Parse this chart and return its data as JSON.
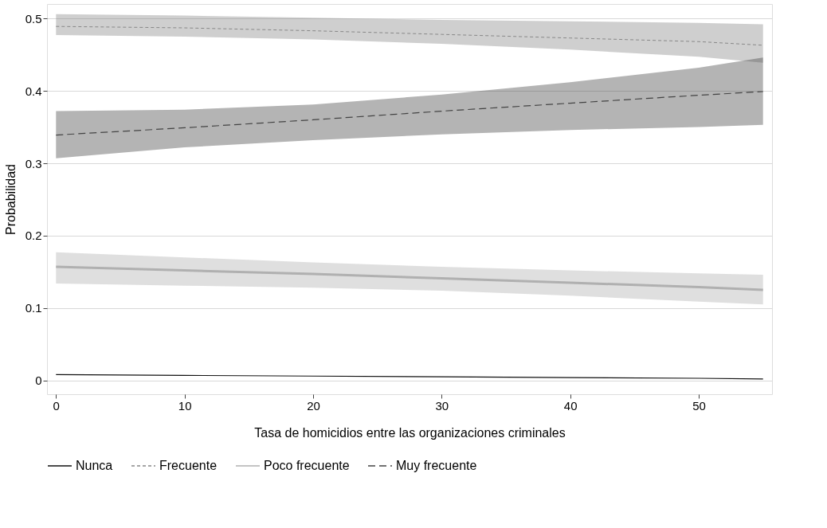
{
  "chart_data": {
    "type": "line",
    "xlabel": "Tasa de homicidios entre las organizaciones criminales",
    "ylabel": "Probabilidad",
    "x": [
      0,
      10,
      20,
      30,
      40,
      50,
      55
    ],
    "xlim": [
      -0.7,
      55.7
    ],
    "ylim": [
      -0.019,
      0.52
    ],
    "xticks": [
      0,
      10,
      20,
      30,
      40,
      50
    ],
    "yticks": [
      0,
      0.1,
      0.2,
      0.3,
      0.4,
      0.5
    ],
    "grid": "y",
    "legend": "bottom",
    "series": [
      {
        "name": "Nunca",
        "color": "#111111",
        "line_style": "solid",
        "values": [
          0.008,
          0.007,
          0.006,
          0.005,
          0.004,
          0.003,
          0.002
        ]
      },
      {
        "name": "Frecuente",
        "color": "#888888",
        "line_style": "dotted",
        "values": [
          0.489,
          0.487,
          0.483,
          0.478,
          0.473,
          0.468,
          0.463
        ],
        "lower": [
          0.477,
          0.475,
          0.471,
          0.465,
          0.457,
          0.447,
          0.439
        ],
        "upper": [
          0.506,
          0.504,
          0.501,
          0.498,
          0.496,
          0.494,
          0.492
        ]
      },
      {
        "name": "Poco frecuente",
        "color": "#b0b0b0",
        "line_style": "solid",
        "values": [
          0.157,
          0.152,
          0.147,
          0.141,
          0.135,
          0.129,
          0.125
        ],
        "lower": [
          0.134,
          0.131,
          0.128,
          0.124,
          0.117,
          0.109,
          0.105
        ],
        "upper": [
          0.177,
          0.17,
          0.163,
          0.157,
          0.152,
          0.148,
          0.146
        ]
      },
      {
        "name": "Muy frecuente",
        "color": "#444444",
        "line_style": "dashed",
        "values": [
          0.339,
          0.349,
          0.36,
          0.372,
          0.383,
          0.394,
          0.399
        ],
        "lower": [
          0.307,
          0.322,
          0.332,
          0.34,
          0.346,
          0.35,
          0.353
        ],
        "upper": [
          0.372,
          0.374,
          0.381,
          0.395,
          0.412,
          0.432,
          0.446
        ]
      }
    ]
  }
}
